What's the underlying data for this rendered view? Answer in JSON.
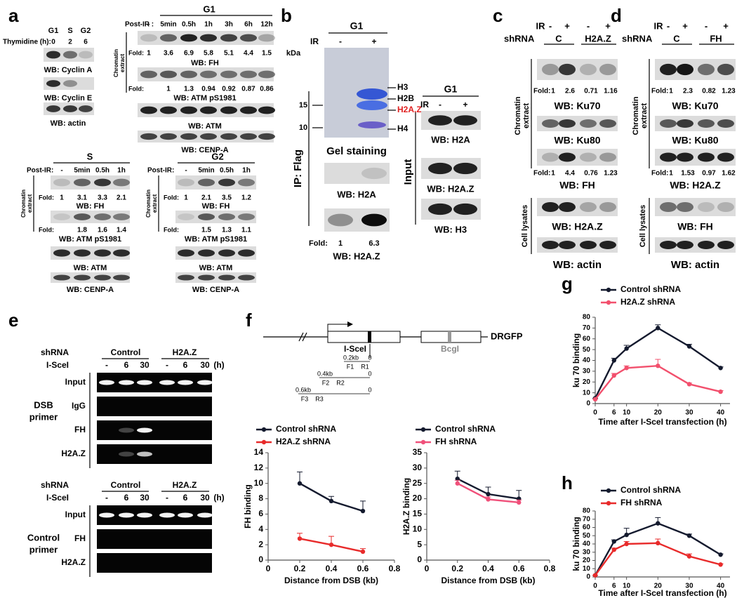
{
  "panel_labels": [
    "a",
    "b",
    "c",
    "d",
    "e",
    "f",
    "g",
    "h"
  ],
  "fold_label": "Fold:",
  "a": {
    "cycle": {
      "phases": [
        "G1",
        "S",
        "G2"
      ],
      "thymidine_label": "Thymidine (h):",
      "thymidine": [
        0,
        2,
        6
      ],
      "blots": [
        "WB: Cyclin A",
        "WB: Cyclin E",
        "WB: actin"
      ]
    },
    "g1": {
      "title": "G1",
      "post_ir": "Post-IR :",
      "times": [
        "-",
        "5min",
        "0.5h",
        "1h",
        "3h",
        "6h",
        "12h"
      ],
      "side": [
        "Chromatin",
        "extract"
      ],
      "fh_fold": [
        1,
        3.6,
        6.9,
        5.8,
        5.1,
        4.4,
        1.5
      ],
      "atm_fold": [
        1,
        1.3,
        0.94,
        0.92,
        0.87,
        0.86
      ],
      "blots": [
        "WB: FH",
        "WB: ATM pS1981",
        "WB: ATM",
        "WB: CENP-A"
      ]
    },
    "s": {
      "title": "S",
      "post_ir": "Post-IR:",
      "times": [
        "-",
        "5min",
        "0.5h",
        "1h"
      ],
      "side": [
        "Chromatin",
        "extract"
      ],
      "fh_fold": [
        1,
        3.1,
        3.3,
        2.1
      ],
      "atm_fold": [
        1.8,
        1.6,
        1.4
      ],
      "blots": [
        "WB: FH",
        "WB: ATM pS1981",
        "WB: ATM",
        "WB: CENP-A"
      ]
    },
    "g2": {
      "title": "G2",
      "post_ir": "Post-IR:",
      "times": [
        "-",
        "5min",
        "0.5h",
        "1h"
      ],
      "side": [
        "Chromatin",
        "extract"
      ],
      "fh_fold": [
        1,
        2.1,
        3.5,
        1.2
      ],
      "atm_fold": [
        1.5,
        1.3,
        1.1
      ],
      "blots": [
        "WB: FH",
        "WB: ATM pS1981",
        "WB: ATM",
        "WB: CENP-A"
      ]
    }
  },
  "b": {
    "ip": {
      "title": "G1",
      "ir_label": "IR",
      "ir": [
        "-",
        "+"
      ],
      "kda": "kDa",
      "markers": [
        15,
        10
      ],
      "histones": [
        "H3",
        "H2B",
        "H2A.Z",
        "H4"
      ],
      "gel": "Gel staining",
      "side": "IP: Flag",
      "blots": [
        "WB: H2A",
        "WB: H2A.Z"
      ],
      "fold": [
        1,
        6.3
      ]
    },
    "input": {
      "title": "G1",
      "ir_label": "IR",
      "ir": [
        "-",
        "+"
      ],
      "side": "Input",
      "blots": [
        "WB: H2A",
        "WB: H2A.Z",
        "WB: H3"
      ]
    }
  },
  "c": {
    "ir_label": "IR",
    "ir": [
      "-",
      "+",
      "-",
      "+"
    ],
    "shrna_label": "shRNA",
    "groups": [
      "C",
      "H2A.Z"
    ],
    "side_top": [
      "Chromatin",
      "extract"
    ],
    "side_bottom": "Cell lysates",
    "first_fold": [
      1,
      2.6,
      0.71,
      1.16
    ],
    "second_fold": [
      1,
      4.4,
      0.76,
      1.23
    ],
    "blots": [
      "WB: Ku70",
      "WB: Ku80",
      "WB: FH",
      "WB: H2A.Z",
      "WB: actin"
    ]
  },
  "d": {
    "ir_label": "IR",
    "ir": [
      "-",
      "+",
      "-",
      "+"
    ],
    "shrna_label": "shRNA",
    "groups": [
      "C",
      "FH"
    ],
    "side_top": [
      "Chromatin",
      "extract"
    ],
    "side_bottom": "Cell lysates",
    "first_fold": [
      1,
      2.3,
      0.82,
      1.23
    ],
    "second_fold": [
      1,
      1.53,
      0.97,
      1.62
    ],
    "blots": [
      "WB: Ku70",
      "WB: Ku80",
      "WB: H2A.Z",
      "WB: FH",
      "WB: actin"
    ]
  },
  "e": {
    "top": {
      "shrna_label": "shRNA",
      "groups": [
        "Control",
        "H2A.Z"
      ],
      "scei_label": "I-SceI",
      "times": [
        "-",
        "6",
        "30",
        "-",
        "6",
        "30"
      ],
      "unit": "(h)",
      "rows": [
        "Input",
        "IgG",
        "FH",
        "H2A.Z"
      ],
      "primer": [
        "DSB",
        "primer"
      ]
    },
    "bottom": {
      "shrna_label": "shRNA",
      "groups": [
        "Control",
        "H2A.Z"
      ],
      "scei_label": "I-SceI",
      "times": [
        "-",
        "6",
        "30",
        "-",
        "6",
        "30"
      ],
      "unit": "(h)",
      "rows": [
        "Input",
        "FH",
        "H2A.Z"
      ],
      "primer": [
        "Control",
        "primer"
      ]
    }
  },
  "f": {
    "site": "I-SceI",
    "bcgi": "BcgI",
    "reporter": "DRGFP",
    "amplicons": [
      {
        "size": "0.2kb",
        "f": "F1",
        "r": "R1",
        "end": 0
      },
      {
        "size": "0.4kb",
        "f": "F2",
        "r": "R2",
        "end": 0
      },
      {
        "size": "0.6kb",
        "f": "F3",
        "r": "R3",
        "end": 0
      }
    ]
  },
  "chart_data": [
    {
      "type": "line",
      "xlabel": "Distance from DSB (kb)",
      "ylabel": "FH binding",
      "x": [
        0.2,
        0.4,
        0.6
      ],
      "series": [
        {
          "name": "Control shRNA",
          "color": "#141a2e",
          "values": [
            10,
            7.7,
            6.4
          ],
          "errors": [
            1.5,
            0.6,
            1.3
          ]
        },
        {
          "name": "H2A.Z shRNA",
          "color": "#e82b2b",
          "values": [
            2.8,
            2,
            1.1
          ],
          "errors": [
            0.7,
            1.1,
            0.4
          ]
        }
      ],
      "xlim": [
        0,
        0.8
      ],
      "xticks": [
        0,
        0.2,
        0.4,
        0.6,
        0.8
      ],
      "ylim": [
        0,
        14
      ],
      "yticks": [
        0,
        2,
        4,
        6,
        8,
        10,
        12,
        14
      ],
      "legend": "top-left"
    },
    {
      "type": "line",
      "xlabel": "Distance from DSB (kb)",
      "ylabel": "H2A.Z binding",
      "x": [
        0.2,
        0.4,
        0.6
      ],
      "series": [
        {
          "name": "Control shRNA",
          "color": "#141a2e",
          "values": [
            26.5,
            21.5,
            20
          ],
          "errors": [
            2.5,
            2.3,
            2.7
          ]
        },
        {
          "name": "FH shRNA",
          "color": "#f0507a",
          "values": [
            25,
            19.8,
            18.8
          ],
          "errors": [
            1,
            0.8,
            0.8
          ]
        }
      ],
      "xlim": [
        0,
        0.8
      ],
      "xticks": [
        0,
        0.2,
        0.4,
        0.6,
        0.8
      ],
      "ylim": [
        0,
        35
      ],
      "yticks": [
        0,
        5,
        10,
        15,
        20,
        25,
        30,
        35
      ],
      "legend": "top-left"
    },
    {
      "type": "line",
      "xlabel": "Time after I-SceI transfection (h)",
      "ylabel": "ku 70 binding",
      "x": [
        0,
        6,
        10,
        20,
        30,
        40
      ],
      "series": [
        {
          "name": "Control shRNA",
          "color": "#141a2e",
          "values": [
            5,
            40,
            51,
            70,
            53,
            33
          ],
          "errors": [
            0,
            2,
            3,
            3,
            2,
            1
          ]
        },
        {
          "name": "H2A.Z shRNA",
          "color": "#f2506d",
          "values": [
            4,
            26,
            33,
            35,
            18,
            11
          ],
          "errors": [
            0,
            2,
            2,
            6,
            1,
            1
          ]
        }
      ],
      "xlim": [
        0,
        43
      ],
      "xticks": [
        0,
        6,
        10,
        20,
        30,
        40
      ],
      "ylim": [
        0,
        80
      ],
      "yticks": [
        0,
        10,
        20,
        30,
        40,
        50,
        60,
        70,
        80
      ],
      "legend": "top-left"
    },
    {
      "type": "line",
      "xlabel": "Time after I-SceI transfection (h)",
      "ylabel": "ku 70 binding",
      "x": [
        0,
        6,
        10,
        20,
        30,
        40
      ],
      "series": [
        {
          "name": "Control shRNA",
          "color": "#141a2e",
          "values": [
            2,
            43,
            51,
            65,
            50,
            27
          ],
          "errors": [
            0,
            2,
            8,
            7,
            2,
            1
          ]
        },
        {
          "name": "FH shRNA",
          "color": "#e82b2b",
          "values": [
            2,
            33,
            40,
            41,
            25,
            15
          ],
          "errors": [
            0,
            2,
            3,
            5,
            3,
            1
          ]
        }
      ],
      "xlim": [
        0,
        43
      ],
      "xticks": [
        0,
        6,
        10,
        20,
        30,
        40
      ],
      "ylim": [
        0,
        80
      ],
      "yticks": [
        0,
        10,
        20,
        30,
        40,
        50,
        60,
        70,
        80
      ],
      "legend": "top-left"
    }
  ]
}
